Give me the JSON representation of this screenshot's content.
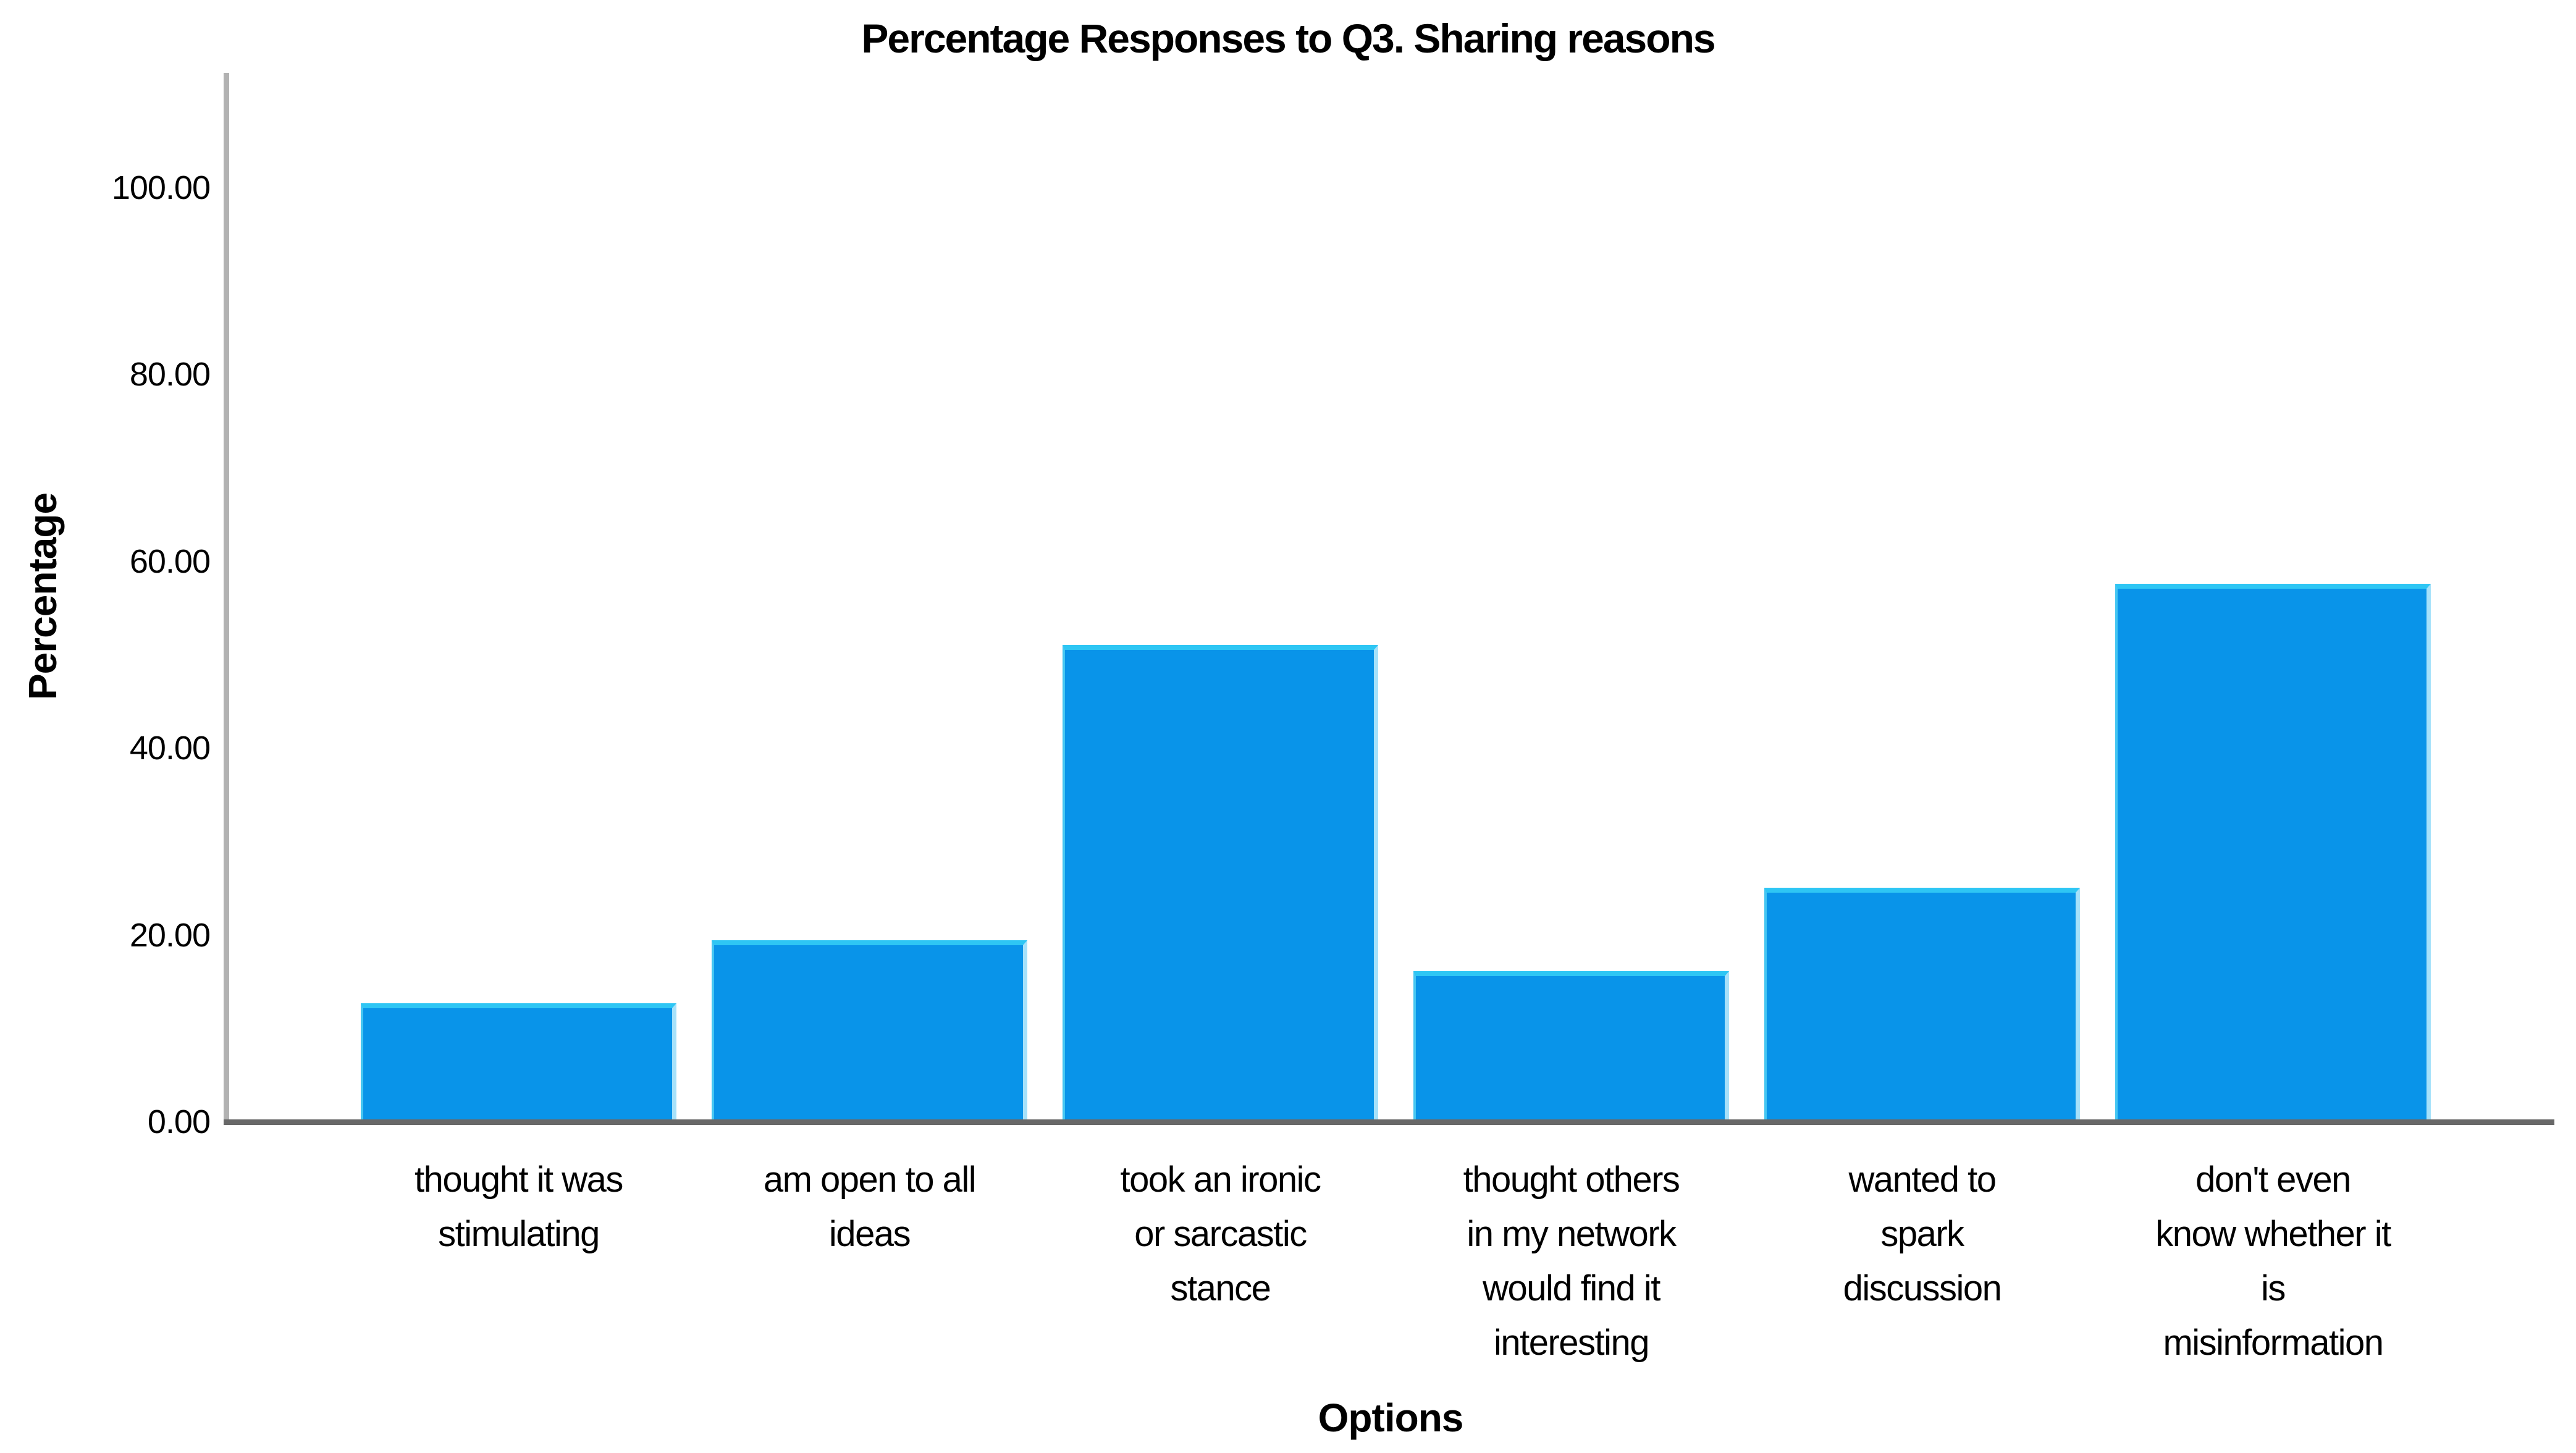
{
  "page": {
    "background": "#ffffff"
  },
  "chart_data": {
    "type": "bar",
    "title": "Percentage Responses to Q3. Sharing reasons",
    "xlabel": "Options",
    "ylabel": "Percentage",
    "categories": [
      "thought it was\nstimulating",
      "am open to all\nideas",
      "took an ironic\nor sarcastic\nstance",
      "thought others\nin my network\nwould find it\ninteresting",
      "wanted to\nspark\ndiscussion",
      "don't even\nknow whether it\nis\nmisinformation"
    ],
    "values": [
      12.4,
      19.2,
      50.8,
      15.9,
      24.8,
      57.3
    ],
    "yticks": [
      0,
      20,
      40,
      60,
      80,
      100
    ],
    "ytick_labels": [
      "0.00",
      "20.00",
      "40.00",
      "60.00",
      "80.00",
      "100.00"
    ],
    "ylim": [
      0,
      112
    ],
    "grid": false,
    "legend": "none",
    "colors": {
      "bar_fill": "#0994e9",
      "bar_top_edge": "#2ec6f4",
      "bar_right_edge": "#a6e1fa",
      "bar_left_edge": "#45c6f2",
      "y_axis_line": "#b2b2b2",
      "x_axis_line": "#686868",
      "text": "#000000"
    }
  }
}
